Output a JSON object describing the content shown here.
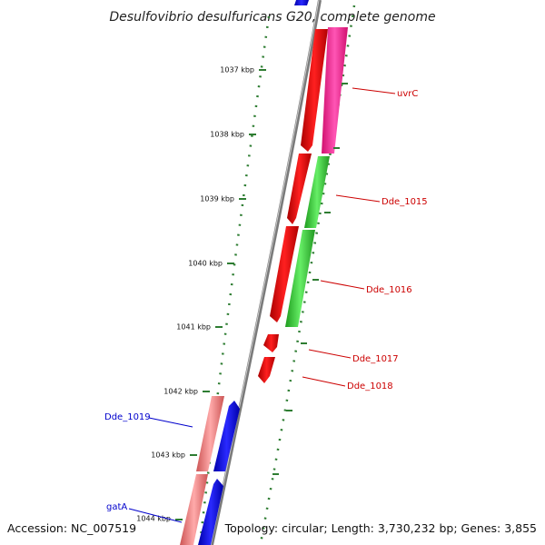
{
  "title": "Desulfovibrio desulfuricans G20, complete genome",
  "footer": {
    "accession": "Accession: NC_007519",
    "topology": "Topology: circular; Length: 3,730,232 bp; Genes: 3,855"
  },
  "colors": {
    "backbone": "#7a7a7a",
    "tick": "#2e7d32",
    "forward_cds": "#ee0000",
    "reverse_cds": "#ff1493",
    "green_cds": "#33cc33",
    "blue_cds": "#0000ee",
    "pink_cds": "#f08080",
    "label_red": "#cc0000",
    "label_blue": "#0000cc"
  },
  "ticks": [
    {
      "label": "1037 kbp"
    },
    {
      "label": "1038 kbp"
    },
    {
      "label": "1039 kbp"
    },
    {
      "label": "1040 kbp"
    },
    {
      "label": "1041 kbp"
    },
    {
      "label": "1042 kbp"
    },
    {
      "label": "1043 kbp"
    },
    {
      "label": "1044 kbp"
    }
  ],
  "gene_labels": [
    {
      "name": "uvrC",
      "color": "red"
    },
    {
      "name": "Dde_1015",
      "color": "red"
    },
    {
      "name": "Dde_1016",
      "color": "red"
    },
    {
      "name": "Dde_1017",
      "color": "red"
    },
    {
      "name": "Dde_1018",
      "color": "red"
    },
    {
      "name": "Dde_1019",
      "color": "blue"
    },
    {
      "name": "gatA",
      "color": "blue"
    }
  ]
}
